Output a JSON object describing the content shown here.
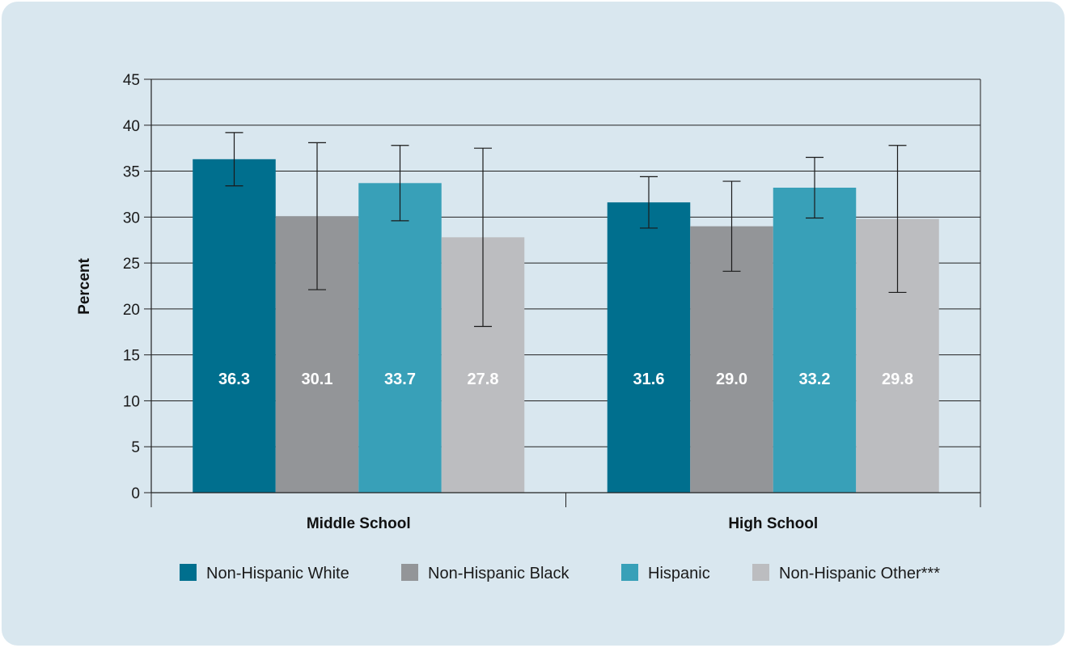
{
  "chart_data": {
    "type": "bar",
    "title": "",
    "xlabel": "",
    "ylabel": "Percent",
    "ylim": [
      0,
      45
    ],
    "ytick_step": 5,
    "grid": true,
    "legend_position": "bottom",
    "categories": [
      "Middle School",
      "High School"
    ],
    "series": [
      {
        "name": "Non-Hispanic White",
        "color": "#006f8e",
        "values": [
          36.3,
          31.6
        ],
        "value_labels": [
          "36.3",
          "31.6"
        ],
        "ci_low": [
          33.4,
          28.8
        ],
        "ci_high": [
          39.2,
          34.4
        ]
      },
      {
        "name": "Non-Hispanic Black",
        "color": "#939598",
        "values": [
          30.1,
          29.0
        ],
        "value_labels": [
          "30.1",
          "29.0"
        ],
        "ci_low": [
          22.1,
          24.1
        ],
        "ci_high": [
          38.1,
          33.9
        ]
      },
      {
        "name": "Hispanic",
        "color": "#38a0b8",
        "values": [
          33.7,
          33.2
        ],
        "value_labels": [
          "33.7",
          "33.2"
        ],
        "ci_low": [
          29.6,
          29.9
        ],
        "ci_high": [
          37.8,
          36.5
        ]
      },
      {
        "name": "Non-Hispanic Other***",
        "color": "#bcbdc0",
        "values": [
          27.8,
          29.8
        ],
        "value_labels": [
          "27.8",
          "29.8"
        ],
        "ci_low": [
          18.1,
          21.8
        ],
        "ci_high": [
          37.5,
          37.8
        ]
      }
    ]
  }
}
